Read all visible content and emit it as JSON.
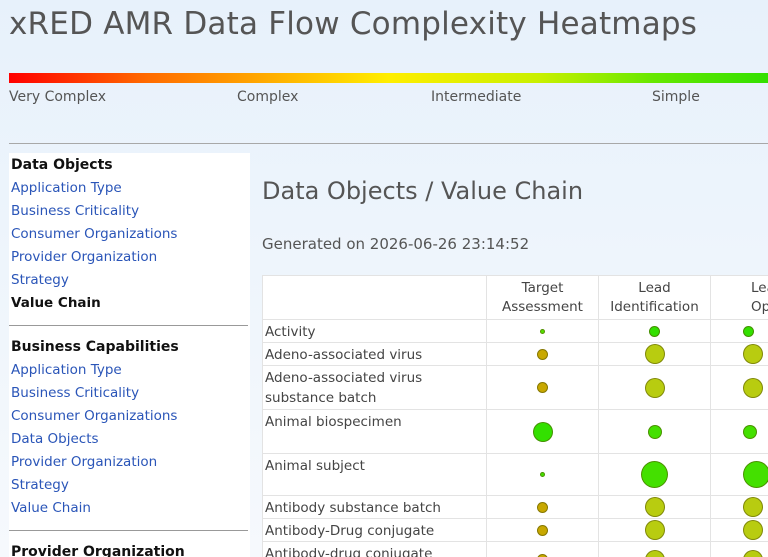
{
  "title": "xRED AMR Data Flow Complexity Heatmaps",
  "scale": {
    "labels": [
      "Very Complex",
      "Complex",
      "Intermediate",
      "Simple"
    ]
  },
  "sidebar": {
    "sections": [
      {
        "heading": "Data Objects",
        "items": [
          {
            "label": "Application Type",
            "active": false
          },
          {
            "label": "Business Criticality",
            "active": false
          },
          {
            "label": "Consumer Organizations",
            "active": false
          },
          {
            "label": "Provider Organization",
            "active": false
          },
          {
            "label": "Strategy",
            "active": false
          },
          {
            "label": "Value Chain",
            "active": true
          }
        ]
      },
      {
        "heading": "Business Capabilities",
        "items": [
          {
            "label": "Application Type",
            "active": false
          },
          {
            "label": "Business Criticality",
            "active": false
          },
          {
            "label": "Consumer Organizations",
            "active": false
          },
          {
            "label": "Data Objects",
            "active": false
          },
          {
            "label": "Provider Organization",
            "active": false
          },
          {
            "label": "Strategy",
            "active": false
          },
          {
            "label": "Value Chain",
            "active": false
          }
        ]
      },
      {
        "heading": "Provider Organization",
        "items": []
      }
    ]
  },
  "main": {
    "heading": "Data Objects / Value Chain",
    "generated": "Generated on 2026-06-26 23:14:52"
  },
  "table": {
    "columns": [
      "Target Assessment",
      "Lead Identification",
      "Lead Optimization"
    ],
    "rows": [
      {
        "label": "Activity",
        "cells": [
          {
            "size": "xs",
            "color": "#55e000"
          },
          {
            "size": "s",
            "color": "#33e000"
          },
          {
            "size": "s",
            "color": "#33e000"
          }
        ]
      },
      {
        "label": "Adeno-associated virus",
        "cells": [
          {
            "size": "s",
            "color": "#c8a800"
          },
          {
            "size": "l",
            "color": "#b8cc10"
          },
          {
            "size": "l",
            "color": "#b8cc10"
          }
        ]
      },
      {
        "label": "Adeno-associated virus substance batch",
        "cells": [
          {
            "size": "s",
            "color": "#c8a800"
          },
          {
            "size": "l",
            "color": "#b8cc10"
          },
          {
            "size": "l",
            "color": "#b8cc10"
          }
        ]
      },
      {
        "label": "Animal biospecimen",
        "cells": [
          {
            "size": "l",
            "color": "#33e000"
          },
          {
            "size": "m",
            "color": "#44e000"
          },
          {
            "size": "m",
            "color": "#44e000"
          }
        ]
      },
      {
        "label": "Animal subject",
        "cells": [
          {
            "size": "xs",
            "color": "#44e000"
          },
          {
            "size": "xl",
            "color": "#44e000"
          },
          {
            "size": "xl",
            "color": "#44e000"
          }
        ]
      },
      {
        "label": "Antibody substance batch",
        "cells": [
          {
            "size": "s",
            "color": "#c8a800"
          },
          {
            "size": "l",
            "color": "#b8cc10"
          },
          {
            "size": "l",
            "color": "#b8cc10"
          }
        ]
      },
      {
        "label": "Antibody-Drug conjugate",
        "cells": [
          {
            "size": "s",
            "color": "#c8a800"
          },
          {
            "size": "l",
            "color": "#b8cc10"
          },
          {
            "size": "l",
            "color": "#b8cc10"
          }
        ]
      },
      {
        "label": "Antibody-drug conjugate",
        "cells": [
          {
            "size": "s",
            "color": "#c8a800"
          },
          {
            "size": "l",
            "color": "#b8cc10"
          },
          {
            "size": "l",
            "color": "#b8cc10"
          }
        ]
      }
    ]
  }
}
